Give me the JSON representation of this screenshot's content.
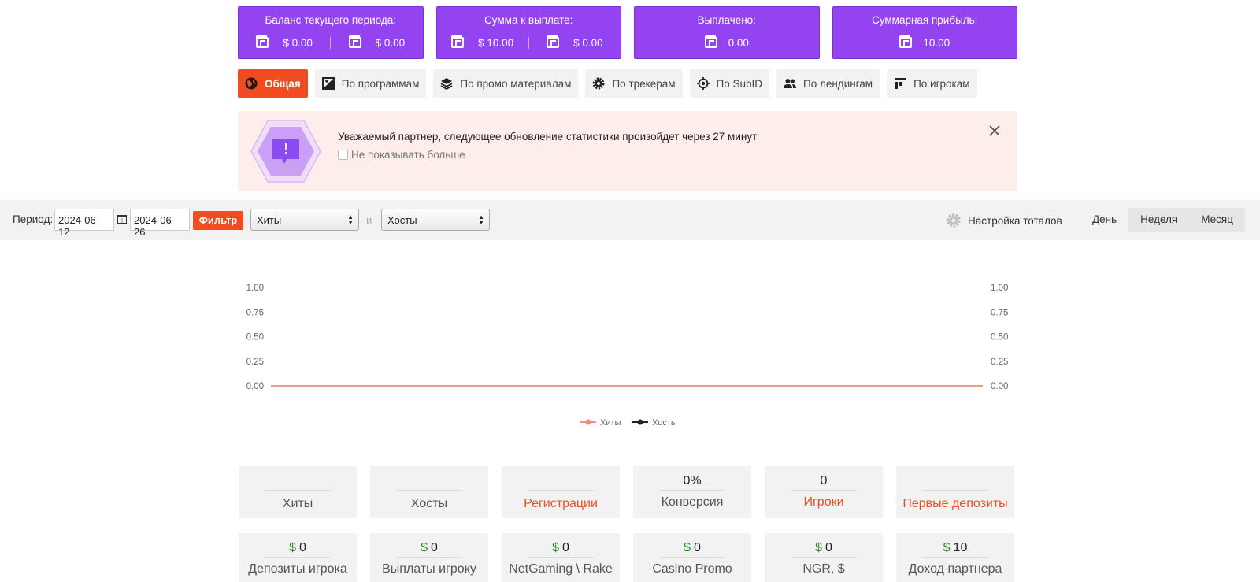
{
  "summary": [
    {
      "title": "Баланс текущего периода:",
      "values": [
        "$ 0.00",
        "$ 0.00"
      ],
      "icon": "wallet-icon"
    },
    {
      "title": "Сумма к выплате:",
      "values": [
        "$ 10.00",
        "$ 0.00"
      ],
      "icon": "wallet-icon"
    },
    {
      "title": "Выплачено:",
      "values": [
        "0.00"
      ],
      "icon": "wallet-icon"
    },
    {
      "title": "Суммарная прибыль:",
      "values": [
        "10.00"
      ],
      "icon": "wallet-icon"
    }
  ],
  "tabs": [
    {
      "label": "Общая",
      "icon": "globe-icon",
      "active": true
    },
    {
      "label": "По программам",
      "icon": "chart-box-icon"
    },
    {
      "label": "По промо материалам",
      "icon": "layers-icon"
    },
    {
      "label": "По трекерам",
      "icon": "gear-icon"
    },
    {
      "label": "По SubID",
      "icon": "crosshair-icon"
    },
    {
      "label": "По лендингам",
      "icon": "users-icon"
    },
    {
      "label": "По игрокам",
      "icon": "bar-list-icon"
    }
  ],
  "notice": {
    "text": "Уважаемый партнер, следующее обновление статистики произойдет через 27 минут",
    "dont_show": "Не показывать больше"
  },
  "filter": {
    "period_label": "Период:",
    "date_from": "2024-06-12",
    "date_to": "2024-06-26",
    "filter_button": "Фильтр",
    "metric1": "Хиты",
    "and_label": "и",
    "metric2": "Хосты",
    "totals_settings": "Настройка тоталов",
    "period_tabs": [
      "День",
      "Неделя",
      "Месяц"
    ],
    "active_period": "Неделя"
  },
  "chart_data": {
    "type": "line",
    "title": "",
    "xlabel": "",
    "ylabel": "",
    "y_ticks": [
      "1.00",
      "0.75",
      "0.50",
      "0.25",
      "0.00"
    ],
    "ylim": [
      0,
      1
    ],
    "y2_ticks": [
      "1.00",
      "0.75",
      "0.50",
      "0.25",
      "0.00"
    ],
    "y2lim": [
      0,
      1
    ],
    "series": [
      {
        "name": "Хиты",
        "values": [
          0,
          0
        ],
        "color": "#f58a6a"
      },
      {
        "name": "Хосты",
        "values": [
          0,
          0
        ],
        "color": "#222222"
      }
    ],
    "legend_position": "bottom-center"
  },
  "stats_row1": [
    {
      "value": "",
      "label": "Хиты",
      "red": false
    },
    {
      "value": "",
      "label": "Хосты",
      "red": false
    },
    {
      "value": "",
      "label": "Регистрации",
      "red": true
    },
    {
      "value": "0%",
      "label": "Конверсия",
      "red": false
    },
    {
      "value": "0",
      "label": "Игроки",
      "red": true
    },
    {
      "value": "",
      "label": "Первые депозиты",
      "red": true
    }
  ],
  "stats_row2": [
    {
      "currency": "$",
      "value": "0",
      "label": "Депозиты игрока"
    },
    {
      "currency": "$",
      "value": "0",
      "label": "Выплаты игроку"
    },
    {
      "currency": "$",
      "value": "0",
      "label": "NetGaming \\ Rake"
    },
    {
      "currency": "$",
      "value": "0",
      "label": "Casino Promo"
    },
    {
      "currency": "$",
      "value": "0",
      "label": "NGR, $"
    },
    {
      "currency": "$",
      "value": "10",
      "label": "Доход партнера"
    }
  ],
  "colors": {
    "accent": "#f24b22",
    "summary_bg": "#9343ef",
    "notice_bg": "#fdeeec",
    "money": "#2a8a2a"
  }
}
